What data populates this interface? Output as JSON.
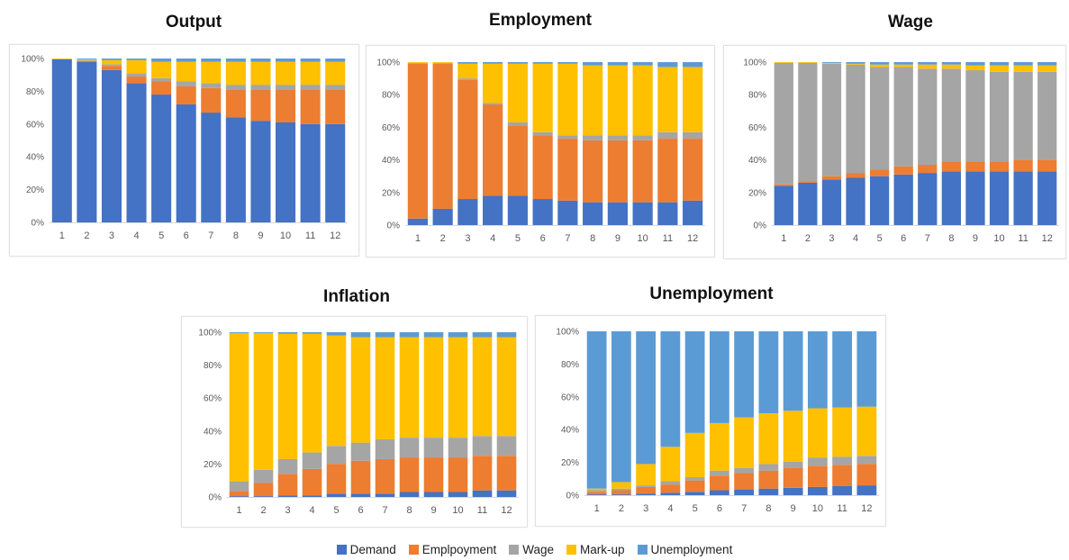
{
  "colors": {
    "Demand": "#4472c4",
    "Emplpoyment": "#ed7d31",
    "Wage": "#a5a5a5",
    "Mark-up": "#ffc000",
    "Unemployment": "#5b9bd5"
  },
  "legend": [
    "Demand",
    "Emplpoyment",
    "Wage",
    "Mark-up",
    "Unemployment"
  ],
  "chart_data": [
    {
      "type": "bar",
      "stacked": "percent",
      "title": "Output",
      "categories": [
        "1",
        "2",
        "3",
        "4",
        "5",
        "6",
        "7",
        "8",
        "9",
        "10",
        "11",
        "12"
      ],
      "yticks": [
        "0%",
        "20%",
        "40%",
        "60%",
        "80%",
        "100%"
      ],
      "ylim": [
        0,
        100
      ],
      "grid": false,
      "legend_position": "bottom",
      "series": [
        {
          "name": "Demand",
          "values": [
            99.5,
            98,
            93,
            85,
            78,
            72,
            67,
            64,
            62,
            61,
            60,
            60
          ]
        },
        {
          "name": "Emplpoyment",
          "values": [
            0,
            0.5,
            2.5,
            4,
            8,
            11,
            15,
            17,
            19,
            20,
            21,
            21
          ]
        },
        {
          "name": "Wage",
          "values": [
            0,
            0.5,
            1,
            2,
            2,
            3,
            3,
            3,
            3,
            3,
            3,
            3
          ]
        },
        {
          "name": "Mark-up",
          "values": [
            0.5,
            0.5,
            2.5,
            8,
            10,
            12,
            13,
            14,
            14,
            14,
            14,
            14
          ]
        },
        {
          "name": "Unemployment",
          "values": [
            0,
            0.5,
            1,
            1,
            2,
            2,
            2,
            2,
            2,
            2,
            2,
            2
          ]
        }
      ]
    },
    {
      "type": "bar",
      "stacked": "percent",
      "title": "Employment",
      "categories": [
        "1",
        "2",
        "3",
        "4",
        "5",
        "6",
        "7",
        "8",
        "9",
        "10",
        "11",
        "12"
      ],
      "yticks": [
        "0%",
        "20%",
        "40%",
        "60%",
        "80%",
        "100%"
      ],
      "ylim": [
        0,
        100
      ],
      "grid": false,
      "legend_position": "bottom",
      "series": [
        {
          "name": "Demand",
          "values": [
            4,
            10,
            16,
            18,
            18,
            16,
            15,
            14,
            14,
            14,
            14,
            15
          ]
        },
        {
          "name": "Emplpoyment",
          "values": [
            95,
            89,
            73,
            56,
            43,
            39,
            38,
            38,
            38,
            38,
            39,
            38
          ]
        },
        {
          "name": "Wage",
          "values": [
            0.5,
            0.5,
            1,
            1,
            2,
            2,
            2,
            3,
            3,
            3,
            4,
            4
          ]
        },
        {
          "name": "Mark-up",
          "values": [
            0.5,
            0.5,
            9,
            24,
            36,
            42,
            44,
            43,
            43,
            43,
            40,
            40
          ]
        },
        {
          "name": "Unemployment",
          "values": [
            0,
            0,
            1,
            1,
            1,
            1,
            1,
            2,
            2,
            2,
            3,
            3
          ]
        }
      ]
    },
    {
      "type": "bar",
      "stacked": "percent",
      "title": "Wage",
      "categories": [
        "1",
        "2",
        "3",
        "4",
        "5",
        "6",
        "7",
        "8",
        "9",
        "10",
        "11",
        "12"
      ],
      "yticks": [
        "0%",
        "20%",
        "40%",
        "60%",
        "80%",
        "100%"
      ],
      "ylim": [
        0,
        100
      ],
      "grid": false,
      "legend_position": "bottom",
      "series": [
        {
          "name": "Demand",
          "values": [
            24,
            26,
            28,
            29,
            30,
            31,
            32,
            33,
            33,
            33,
            33,
            33
          ]
        },
        {
          "name": "Emplpoyment",
          "values": [
            1,
            1,
            2,
            3,
            4,
            5,
            5,
            6,
            6,
            6,
            7,
            7
          ]
        },
        {
          "name": "Wage",
          "values": [
            74.5,
            72.5,
            69,
            66.5,
            63,
            61,
            59,
            57,
            56,
            55,
            54,
            54
          ]
        },
        {
          "name": "Mark-up",
          "values": [
            0.5,
            0.5,
            0.5,
            0.5,
            1.5,
            1.5,
            2.5,
            2.5,
            3,
            4,
            4,
            4
          ]
        },
        {
          "name": "Unemployment",
          "values": [
            0,
            0,
            0.5,
            1,
            1.5,
            1.5,
            1.5,
            1.5,
            2,
            2,
            2,
            2
          ]
        }
      ]
    },
    {
      "type": "bar",
      "stacked": "percent",
      "title": "Inflation",
      "categories": [
        "1",
        "2",
        "3",
        "4",
        "5",
        "6",
        "7",
        "8",
        "9",
        "10",
        "11",
        "12"
      ],
      "yticks": [
        "0%",
        "20%",
        "40%",
        "60%",
        "80%",
        "100%"
      ],
      "ylim": [
        0,
        100
      ],
      "grid": false,
      "legend_position": "bottom",
      "series": [
        {
          "name": "Demand",
          "values": [
            0.5,
            0.5,
            1,
            1,
            2,
            2,
            2,
            3,
            3,
            3,
            4,
            4
          ]
        },
        {
          "name": "Emplpoyment",
          "values": [
            3,
            8,
            13,
            16,
            18,
            20,
            21,
            21,
            21,
            21,
            21,
            21
          ]
        },
        {
          "name": "Wage",
          "values": [
            6,
            8,
            9,
            10,
            11,
            11,
            12,
            12,
            12,
            12,
            12,
            12
          ]
        },
        {
          "name": "Mark-up",
          "values": [
            90,
            83,
            76,
            72,
            67,
            64,
            62,
            61,
            61,
            61,
            60,
            60
          ]
        },
        {
          "name": "Unemployment",
          "values": [
            0.5,
            0.5,
            1,
            1,
            2,
            3,
            3,
            3,
            3,
            3,
            3,
            3
          ]
        }
      ]
    },
    {
      "type": "bar",
      "stacked": "percent",
      "title": "Unemployment",
      "categories": [
        "1",
        "2",
        "3",
        "4",
        "5",
        "6",
        "7",
        "8",
        "9",
        "10",
        "11",
        "12"
      ],
      "yticks": [
        "0%",
        "20%",
        "40%",
        "60%",
        "80%",
        "100%"
      ],
      "ylim": [
        0,
        100
      ],
      "grid": false,
      "legend_position": "bottom",
      "series": [
        {
          "name": "Demand",
          "values": [
            0.5,
            0.5,
            1,
            1.5,
            2,
            3,
            3.5,
            4,
            4.5,
            5,
            5.5,
            6
          ]
        },
        {
          "name": "Emplpoyment",
          "values": [
            1.5,
            2.5,
            4,
            5,
            7,
            9,
            10,
            11,
            12,
            13,
            13,
            13
          ]
        },
        {
          "name": "Wage",
          "values": [
            1,
            1,
            1,
            2,
            2,
            3,
            3,
            4,
            4,
            5,
            5,
            5
          ]
        },
        {
          "name": "Mark-up",
          "values": [
            1,
            4,
            13,
            21,
            27,
            29,
            31,
            31,
            31,
            30,
            30,
            30
          ]
        },
        {
          "name": "Unemployment",
          "values": [
            96,
            92,
            81,
            70.5,
            62,
            56,
            52.5,
            50,
            48.5,
            47,
            46.5,
            46
          ]
        }
      ]
    }
  ]
}
